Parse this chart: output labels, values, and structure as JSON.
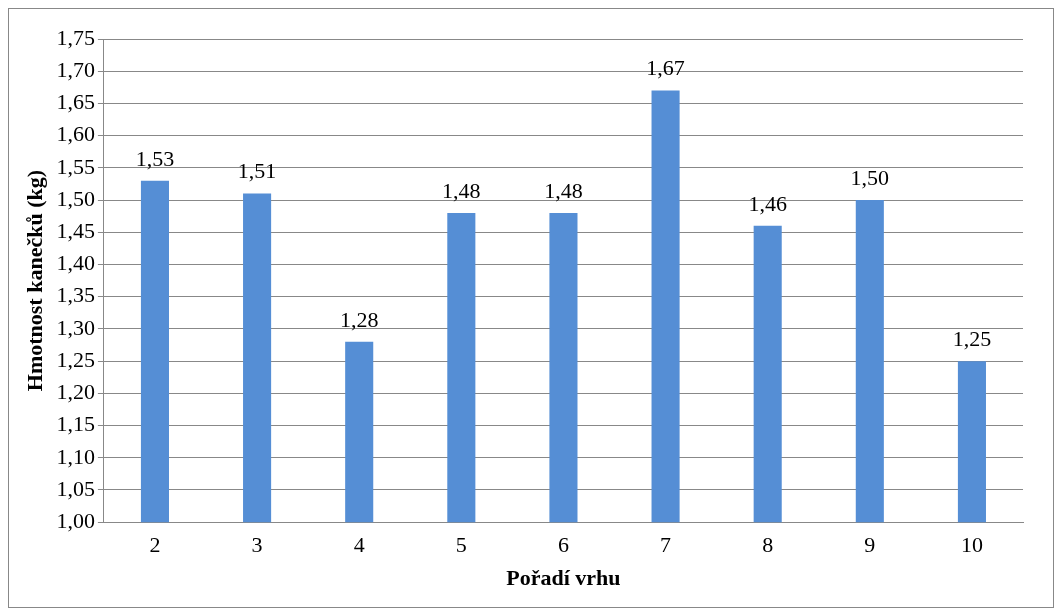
{
  "chart_data": {
    "type": "bar",
    "xlabel": "Pořadí vrhu",
    "ylabel": "Hmotnost kanečků (kg)",
    "categories": [
      "2",
      "3",
      "4",
      "5",
      "6",
      "7",
      "8",
      "9",
      "10"
    ],
    "values": [
      1.53,
      1.51,
      1.28,
      1.48,
      1.48,
      1.67,
      1.46,
      1.5,
      1.25
    ],
    "value_labels": [
      "1,53",
      "1,51",
      "1,28",
      "1,48",
      "1,48",
      "1,67",
      "1,46",
      "1,50",
      "1,25"
    ],
    "color": "#558ed5",
    "ylim": [
      1.0,
      1.75
    ],
    "yticks": [
      {
        "value": 1.0,
        "label": "1,00"
      },
      {
        "value": 1.05,
        "label": "1,05"
      },
      {
        "value": 1.1,
        "label": "1,10"
      },
      {
        "value": 1.15,
        "label": "1,15"
      },
      {
        "value": 1.2,
        "label": "1,20"
      },
      {
        "value": 1.25,
        "label": "1,25"
      },
      {
        "value": 1.3,
        "label": "1,30"
      },
      {
        "value": 1.35,
        "label": "1,35"
      },
      {
        "value": 1.4,
        "label": "1,40"
      },
      {
        "value": 1.45,
        "label": "1,45"
      },
      {
        "value": 1.5,
        "label": "1,50"
      },
      {
        "value": 1.55,
        "label": "1,55"
      },
      {
        "value": 1.6,
        "label": "1,60"
      },
      {
        "value": 1.65,
        "label": "1,65"
      },
      {
        "value": 1.7,
        "label": "1,70"
      },
      {
        "value": 1.75,
        "label": "1,75"
      }
    ],
    "grid": "y"
  }
}
